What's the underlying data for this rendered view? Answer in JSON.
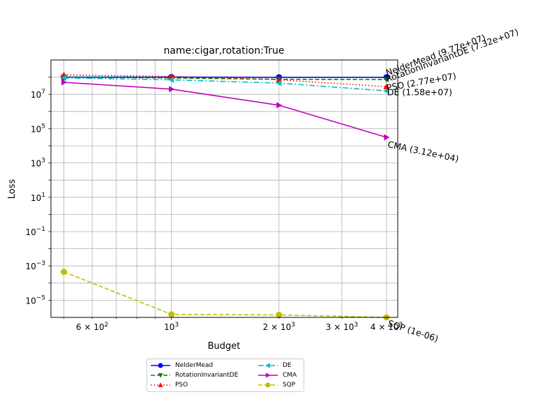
{
  "chart_data": {
    "type": "line",
    "title": "name:cigar,rotation:True",
    "xlabel": "Budget",
    "ylabel": "Loss",
    "xscale": "log",
    "yscale": "log",
    "xlim": [
      460,
      4300
    ],
    "ylim": [
      1e-06,
      1000000000.0
    ],
    "grid": true,
    "legend_position": "below plot, two columns",
    "x_ticks": [
      {
        "value": 600,
        "base": "6 × 10",
        "exp": "2"
      },
      {
        "value": 1000,
        "base": "10",
        "exp": "3"
      },
      {
        "value": 2000,
        "base": "2 × 10",
        "exp": "3"
      },
      {
        "value": 3000,
        "base": "3 × 10",
        "exp": "3"
      },
      {
        "value": 4000,
        "base": "4 × 10",
        "exp": "3"
      }
    ],
    "y_ticks": [
      {
        "value": 1e-05,
        "exp": "−5"
      },
      {
        "value": 0.001,
        "exp": "−3"
      },
      {
        "value": 0.1,
        "exp": "−1"
      },
      {
        "value": 10.0,
        "exp": "1"
      },
      {
        "value": 1000.0,
        "exp": "3"
      },
      {
        "value": 100000.0,
        "exp": "5"
      },
      {
        "value": 10000000.0,
        "exp": "7"
      }
    ],
    "x": [
      500,
      1000,
      2000,
      4000
    ],
    "series": [
      {
        "name": "NelderMead",
        "color": "#0000ff",
        "dash": "solid",
        "marker": "circle",
        "values": [
          100000000.0,
          100000000.0,
          98000000.0,
          97700000.0
        ],
        "end_label": "NelderMead (9.77e+07)"
      },
      {
        "name": "RotationInvariantDE",
        "color": "#008000",
        "dash": "dashed",
        "marker": "triangle-down",
        "values": [
          100000000.0,
          90000000.0,
          75000000.0,
          73200000.0
        ],
        "end_label": "RotationInvariantDE (7.32e+07)"
      },
      {
        "name": "PSO",
        "color": "#ff0000",
        "dash": "dotted",
        "marker": "triangle-up",
        "values": [
          135000000.0,
          110000000.0,
          70000000.0,
          27700000.0
        ],
        "end_label": "PSO (2.77e+07)"
      },
      {
        "name": "DE",
        "color": "#00bfbf",
        "dash": "dashdot",
        "marker": "triangle-left",
        "values": [
          90000000.0,
          70000000.0,
          45000000.0,
          15800000.0
        ],
        "end_label": "DE (1.58e+07)"
      },
      {
        "name": "CMA",
        "color": "#bf00bf",
        "dash": "solid",
        "marker": "triangle-right",
        "values": [
          50000000.0,
          20000000.0,
          2300000.0,
          31200.0
        ],
        "end_label": "CMA (3.12e+04)"
      },
      {
        "name": "SQP",
        "color": "#bfbf00",
        "dash": "dashed",
        "marker": "circle",
        "values": [
          0.00045,
          1.5e-06,
          1.4e-06,
          1e-06
        ],
        "end_label": "SQP (1e-06)"
      }
    ]
  }
}
